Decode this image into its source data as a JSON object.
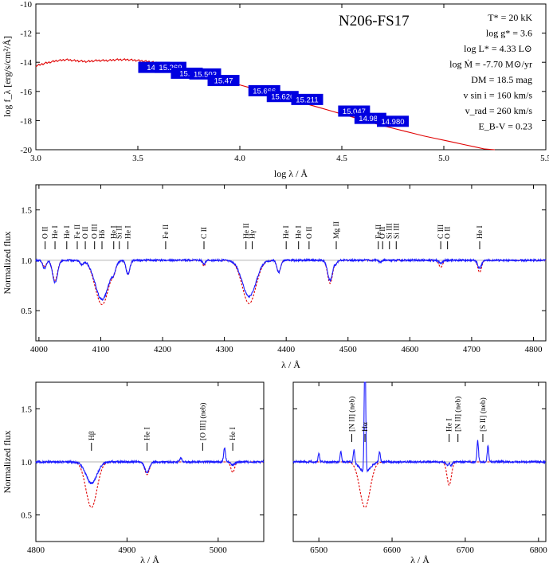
{
  "chart_data": [
    {
      "type": "line",
      "panel": "sed",
      "title": "N206-FS17",
      "xlabel": "log λ / Å",
      "ylabel": "log f_λ [erg/s/cm²/Å]",
      "xlim": [
        3.0,
        5.5
      ],
      "ylim": [
        -20,
        -10
      ],
      "xticks": [
        3.0,
        3.5,
        4.0,
        4.5,
        5.0,
        5.5
      ],
      "yticks": [
        -10,
        -12,
        -14,
        -16,
        -18,
        -20
      ],
      "parameters": [
        "T* = 20 kK",
        "log g* = 3.6",
        "log L* = 4.33 L⊙",
        "log Ṁ = -7.70 M⊙/yr",
        "DM = 18.5 mag",
        "v sin i = 160 km/s",
        "v_rad = 260 km/s",
        "E_B-V = 0.23"
      ],
      "model_sed": {
        "x": [
          3.0,
          3.05,
          3.1,
          3.15,
          3.2,
          3.25,
          3.3,
          3.35,
          3.4,
          3.45,
          3.5,
          3.55,
          3.6,
          3.65,
          3.7,
          3.75,
          3.8,
          3.85,
          3.9,
          3.95,
          4.0,
          4.1,
          4.2,
          4.3,
          4.4,
          4.5,
          4.6,
          4.7,
          4.8,
          4.9,
          5.0,
          5.1,
          5.2,
          5.3
        ],
        "y": [
          -14.25,
          -14.05,
          -13.9,
          -13.82,
          -13.9,
          -13.95,
          -13.88,
          -13.88,
          -13.82,
          -13.82,
          -13.88,
          -13.95,
          -14.05,
          -14.2,
          -14.4,
          -14.55,
          -14.75,
          -14.95,
          -15.15,
          -15.35,
          -15.55,
          -15.95,
          -16.35,
          -16.75,
          -17.15,
          -17.55,
          -17.95,
          -18.35,
          -18.7,
          -19.05,
          -19.35,
          -19.65,
          -19.95,
          -20.25
        ]
      },
      "photometry": [
        {
          "x": 3.58,
          "y": -14.35,
          "label": "14.9"
        },
        {
          "x": 3.66,
          "y": -14.35,
          "label": "15.269"
        },
        {
          "x": 3.74,
          "y": -14.75,
          "label": "15.3"
        },
        {
          "x": 3.83,
          "y": -14.8,
          "label": "15.503"
        },
        {
          "x": 3.92,
          "y": -15.25,
          "label": "15.47"
        },
        {
          "x": 4.12,
          "y": -15.95,
          "label": "15.666"
        },
        {
          "x": 4.21,
          "y": -16.35,
          "label": "15.626"
        },
        {
          "x": 4.33,
          "y": -16.55,
          "label": "15.211"
        },
        {
          "x": 4.56,
          "y": -17.35,
          "label": "15.047"
        },
        {
          "x": 4.64,
          "y": -17.85,
          "label": "14.980"
        },
        {
          "x": 4.75,
          "y": -18.05,
          "label": "14.980"
        }
      ]
    },
    {
      "type": "line",
      "panel": "optical",
      "xlabel": "λ / Å",
      "ylabel": "Normalized flux",
      "xlim": [
        3995,
        4820
      ],
      "ylim": [
        0.2,
        1.75
      ],
      "xticks": [
        4000,
        4100,
        4200,
        4300,
        4400,
        4500,
        4600,
        4700,
        4800
      ],
      "yticks": [
        0.5,
        1.0,
        1.5
      ],
      "lines": [
        {
          "x": 4009,
          "depth_obs": 0.08,
          "depth_mod": 0.06,
          "width": 3
        },
        {
          "x": 4026,
          "depth_obs": 0.22,
          "depth_mod": 0.2,
          "width": 4
        },
        {
          "x": 4069,
          "depth_obs": 0.04,
          "depth_mod": 0.04,
          "width": 3
        },
        {
          "x": 4102,
          "depth_obs": 0.39,
          "depth_mod": 0.44,
          "width": 11
        },
        {
          "x": 4121,
          "depth_obs": 0.06,
          "depth_mod": 0.06,
          "width": 3
        },
        {
          "x": 4144,
          "depth_obs": 0.14,
          "depth_mod": 0.14,
          "width": 3
        },
        {
          "x": 4267,
          "depth_obs": 0.04,
          "depth_mod": 0.06,
          "width": 2
        },
        {
          "x": 4340,
          "depth_obs": 0.36,
          "depth_mod": 0.43,
          "width": 11
        },
        {
          "x": 4388,
          "depth_obs": 0.12,
          "depth_mod": 0.12,
          "width": 3
        },
        {
          "x": 4471,
          "depth_obs": 0.2,
          "depth_mod": 0.23,
          "width": 4
        },
        {
          "x": 4481,
          "depth_obs": 0.03,
          "depth_mod": 0.03,
          "width": 2
        },
        {
          "x": 4552,
          "depth_obs": 0.02,
          "depth_mod": 0.02,
          "width": 2
        },
        {
          "x": 4650,
          "depth_obs": 0.03,
          "depth_mod": 0.07,
          "width": 3
        },
        {
          "x": 4713,
          "depth_obs": 0.08,
          "depth_mod": 0.12,
          "width": 3
        }
      ],
      "annotations": [
        {
          "x": 4010,
          "label": "O II"
        },
        {
          "x": 4026,
          "label": "He I"
        },
        {
          "x": 4045,
          "label": "He I"
        },
        {
          "x": 4062,
          "label": "Fe II"
        },
        {
          "x": 4075,
          "label": "O II"
        },
        {
          "x": 4090,
          "label": "O III"
        },
        {
          "x": 4102,
          "label": "Hδ"
        },
        {
          "x": 4121,
          "label": "He I"
        },
        {
          "x": 4130,
          "label": "Si II"
        },
        {
          "x": 4144,
          "label": "He I"
        },
        {
          "x": 4205,
          "label": "Fe II"
        },
        {
          "x": 4267,
          "label": "C II"
        },
        {
          "x": 4335,
          "label": "He II"
        },
        {
          "x": 4345,
          "label": "Hγ"
        },
        {
          "x": 4400,
          "label": "He I"
        },
        {
          "x": 4420,
          "label": "He I"
        },
        {
          "x": 4437,
          "label": "O II"
        },
        {
          "x": 4481,
          "label": "Mg II"
        },
        {
          "x": 4549,
          "label": "Fe II"
        },
        {
          "x": 4556,
          "label": "O II"
        },
        {
          "x": 4567,
          "label": "Si III"
        },
        {
          "x": 4578,
          "label": "Si III"
        },
        {
          "x": 4650,
          "label": "C III"
        },
        {
          "x": 4661,
          "label": "O II"
        },
        {
          "x": 4713,
          "label": "He I"
        }
      ]
    },
    {
      "type": "line",
      "panel": "hbeta",
      "xlabel": "λ / Å",
      "ylabel": "Normalized flux",
      "xlim": [
        4800,
        5050
      ],
      "ylim": [
        0.25,
        1.75
      ],
      "xticks": [
        4800,
        4900,
        5000
      ],
      "yticks": [
        0.5,
        1.0,
        1.5
      ],
      "lines": [
        {
          "x": 4861,
          "depth_obs": 0.2,
          "depth_mod": 0.43,
          "width": 6,
          "emission": 0
        },
        {
          "x": 4922,
          "depth_obs": 0.1,
          "depth_mod": 0.12,
          "width": 2.5,
          "emission": 0
        },
        {
          "x": 4959,
          "depth_obs": 0,
          "depth_mod": 0,
          "width": 1,
          "emission": 0.04
        },
        {
          "x": 5007,
          "depth_obs": 0,
          "depth_mod": 0,
          "width": 1,
          "emission": 0.13
        },
        {
          "x": 5016,
          "depth_obs": 0.03,
          "depth_mod": 0.1,
          "width": 2,
          "emission": 0
        }
      ],
      "annotations": [
        {
          "x": 4861,
          "label": "Hβ"
        },
        {
          "x": 4922,
          "label": "He I"
        },
        {
          "x": 4983,
          "label": "[O III] (neb)"
        },
        {
          "x": 5016,
          "label": "He I"
        }
      ]
    },
    {
      "type": "line",
      "panel": "halpha",
      "xlabel": "λ / Å",
      "ylabel": "",
      "xlim": [
        6465,
        6810
      ],
      "ylim": [
        0.25,
        1.75
      ],
      "xticks": [
        6500,
        6600,
        6700,
        6800
      ],
      "yticks": [
        0.5,
        1.0,
        1.5
      ],
      "lines": [
        {
          "x": 6563,
          "depth_obs": 0.1,
          "depth_mod": 0.43,
          "width": 7,
          "emission": 1.2
        },
        {
          "x": 6548,
          "depth_obs": 0,
          "depth_mod": 0,
          "width": 1,
          "emission": 0.13
        },
        {
          "x": 6583,
          "depth_obs": 0,
          "depth_mod": 0,
          "width": 1,
          "emission": 0.1
        },
        {
          "x": 6678,
          "depth_obs": 0.05,
          "depth_mod": 0.22,
          "width": 3,
          "emission": 0.04
        },
        {
          "x": 6717,
          "depth_obs": 0,
          "depth_mod": 0,
          "width": 1,
          "emission": 0.2
        },
        {
          "x": 6731,
          "depth_obs": 0,
          "depth_mod": 0,
          "width": 1,
          "emission": 0.15
        },
        {
          "x": 6500,
          "depth_obs": 0,
          "depth_mod": 0,
          "width": 1,
          "emission": 0.08
        },
        {
          "x": 6530,
          "depth_obs": 0,
          "depth_mod": 0,
          "width": 1,
          "emission": 0.1
        }
      ],
      "annotations": [
        {
          "x": 6545,
          "label": "[N II] (neb)"
        },
        {
          "x": 6563,
          "label": "Hα"
        },
        {
          "x": 6678,
          "label": "He I"
        },
        {
          "x": 6690,
          "label": "[N II] (neb)"
        },
        {
          "x": 6724,
          "label": "[S II] (neb)"
        }
      ]
    }
  ]
}
